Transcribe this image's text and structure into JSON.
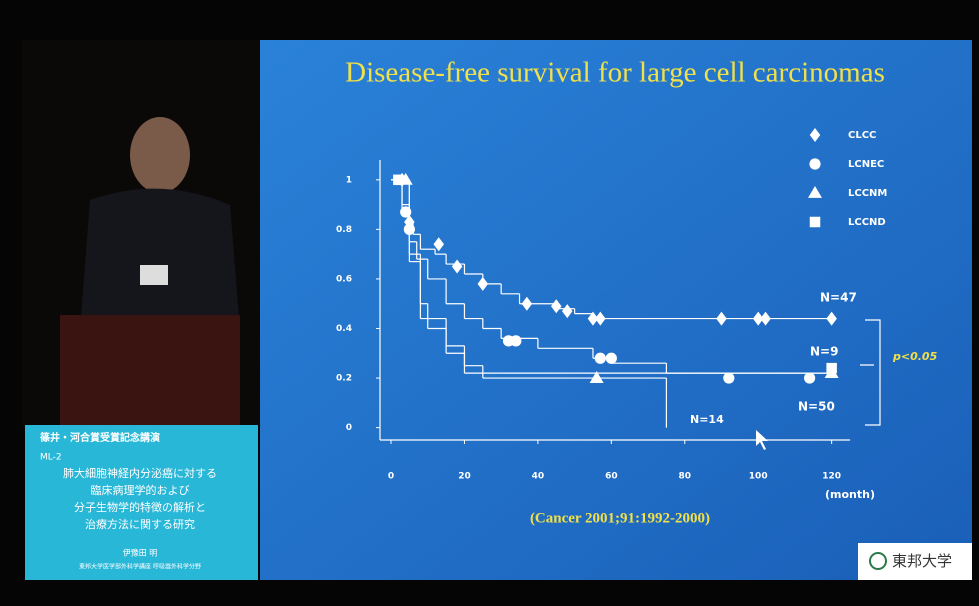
{
  "chart_data": {
    "type": "line",
    "step": true,
    "title": "Disease-free survival for large cell carcinomas",
    "x_label": "(month)",
    "source": "(Cancer 2001;91:1992-2000)",
    "xlim": [
      -3,
      125
    ],
    "ylim": [
      -0.05,
      1.08
    ],
    "xticks": [
      0,
      20,
      40,
      60,
      80,
      100,
      120
    ],
    "yticks": [
      0,
      0.2,
      0.4,
      0.6,
      0.8,
      1
    ],
    "legend": "top-right",
    "series": [
      {
        "name": "CLCC",
        "marker": "diamond",
        "color": "#ffffff",
        "x": [
          0,
          3,
          5,
          6,
          8,
          12,
          15,
          20,
          25,
          30,
          35,
          45,
          50,
          55,
          120
        ],
        "values": [
          1,
          0.9,
          0.83,
          0.78,
          0.72,
          0.7,
          0.66,
          0.62,
          0.58,
          0.54,
          0.5,
          0.48,
          0.46,
          0.44,
          0.44
        ],
        "censor_x": [
          3,
          5,
          13,
          18,
          25,
          37,
          45,
          48,
          55,
          57,
          90,
          100,
          102,
          120
        ],
        "censor_values": [
          1,
          0.83,
          0.74,
          0.65,
          0.58,
          0.5,
          0.49,
          0.47,
          0.44,
          0.44,
          0.44,
          0.44,
          0.44,
          0.44
        ]
      },
      {
        "name": "LCNEC",
        "marker": "circle",
        "color": "#ffffff",
        "x": [
          0,
          3,
          5,
          7,
          10,
          15,
          20,
          25,
          30,
          40,
          55,
          60,
          75,
          120
        ],
        "values": [
          1,
          0.87,
          0.75,
          0.68,
          0.6,
          0.5,
          0.44,
          0.4,
          0.36,
          0.32,
          0.28,
          0.26,
          0.22,
          0.22
        ],
        "censor_x": [
          4,
          5,
          32,
          34,
          57,
          60,
          92,
          114
        ],
        "censor_values": [
          0.87,
          0.8,
          0.35,
          0.35,
          0.28,
          0.28,
          0.2,
          0.2
        ]
      },
      {
        "name": "LCCNM",
        "marker": "triangle",
        "color": "#ffffff",
        "x": [
          0,
          5,
          8,
          15,
          20,
          120
        ],
        "values": [
          1,
          0.67,
          0.44,
          0.33,
          0.22,
          0.22
        ],
        "censor_x": [
          4,
          56,
          120
        ],
        "censor_values": [
          1,
          0.2,
          0.22
        ]
      },
      {
        "name": "LCCND",
        "marker": "square",
        "color": "#ffffff",
        "x": [
          0,
          5,
          8,
          10,
          15,
          20,
          25,
          75,
          75
        ],
        "values": [
          1,
          0.7,
          0.5,
          0.4,
          0.3,
          0.25,
          0.2,
          0.2,
          0
        ],
        "censor_x": [
          2,
          120
        ],
        "censor_values": [
          1,
          0.24
        ]
      }
    ],
    "annotations": [
      "N=47",
      "N=9",
      "N=50",
      "N=14",
      "p<0.05"
    ]
  },
  "caption": {
    "event": "篠井・河合賞受賞記念講演",
    "code": "ML-2",
    "lines": [
      "肺大細胞神経内分泌癌に対する",
      "臨床病理学的および",
      "分子生物学的特徴の解析と",
      "治療方法に関する研究"
    ],
    "speaker": "伊豫田 明",
    "affiliation": "東邦大学医学部外科学講座 呼吸器外科学分野"
  },
  "logo": "東邦大学"
}
